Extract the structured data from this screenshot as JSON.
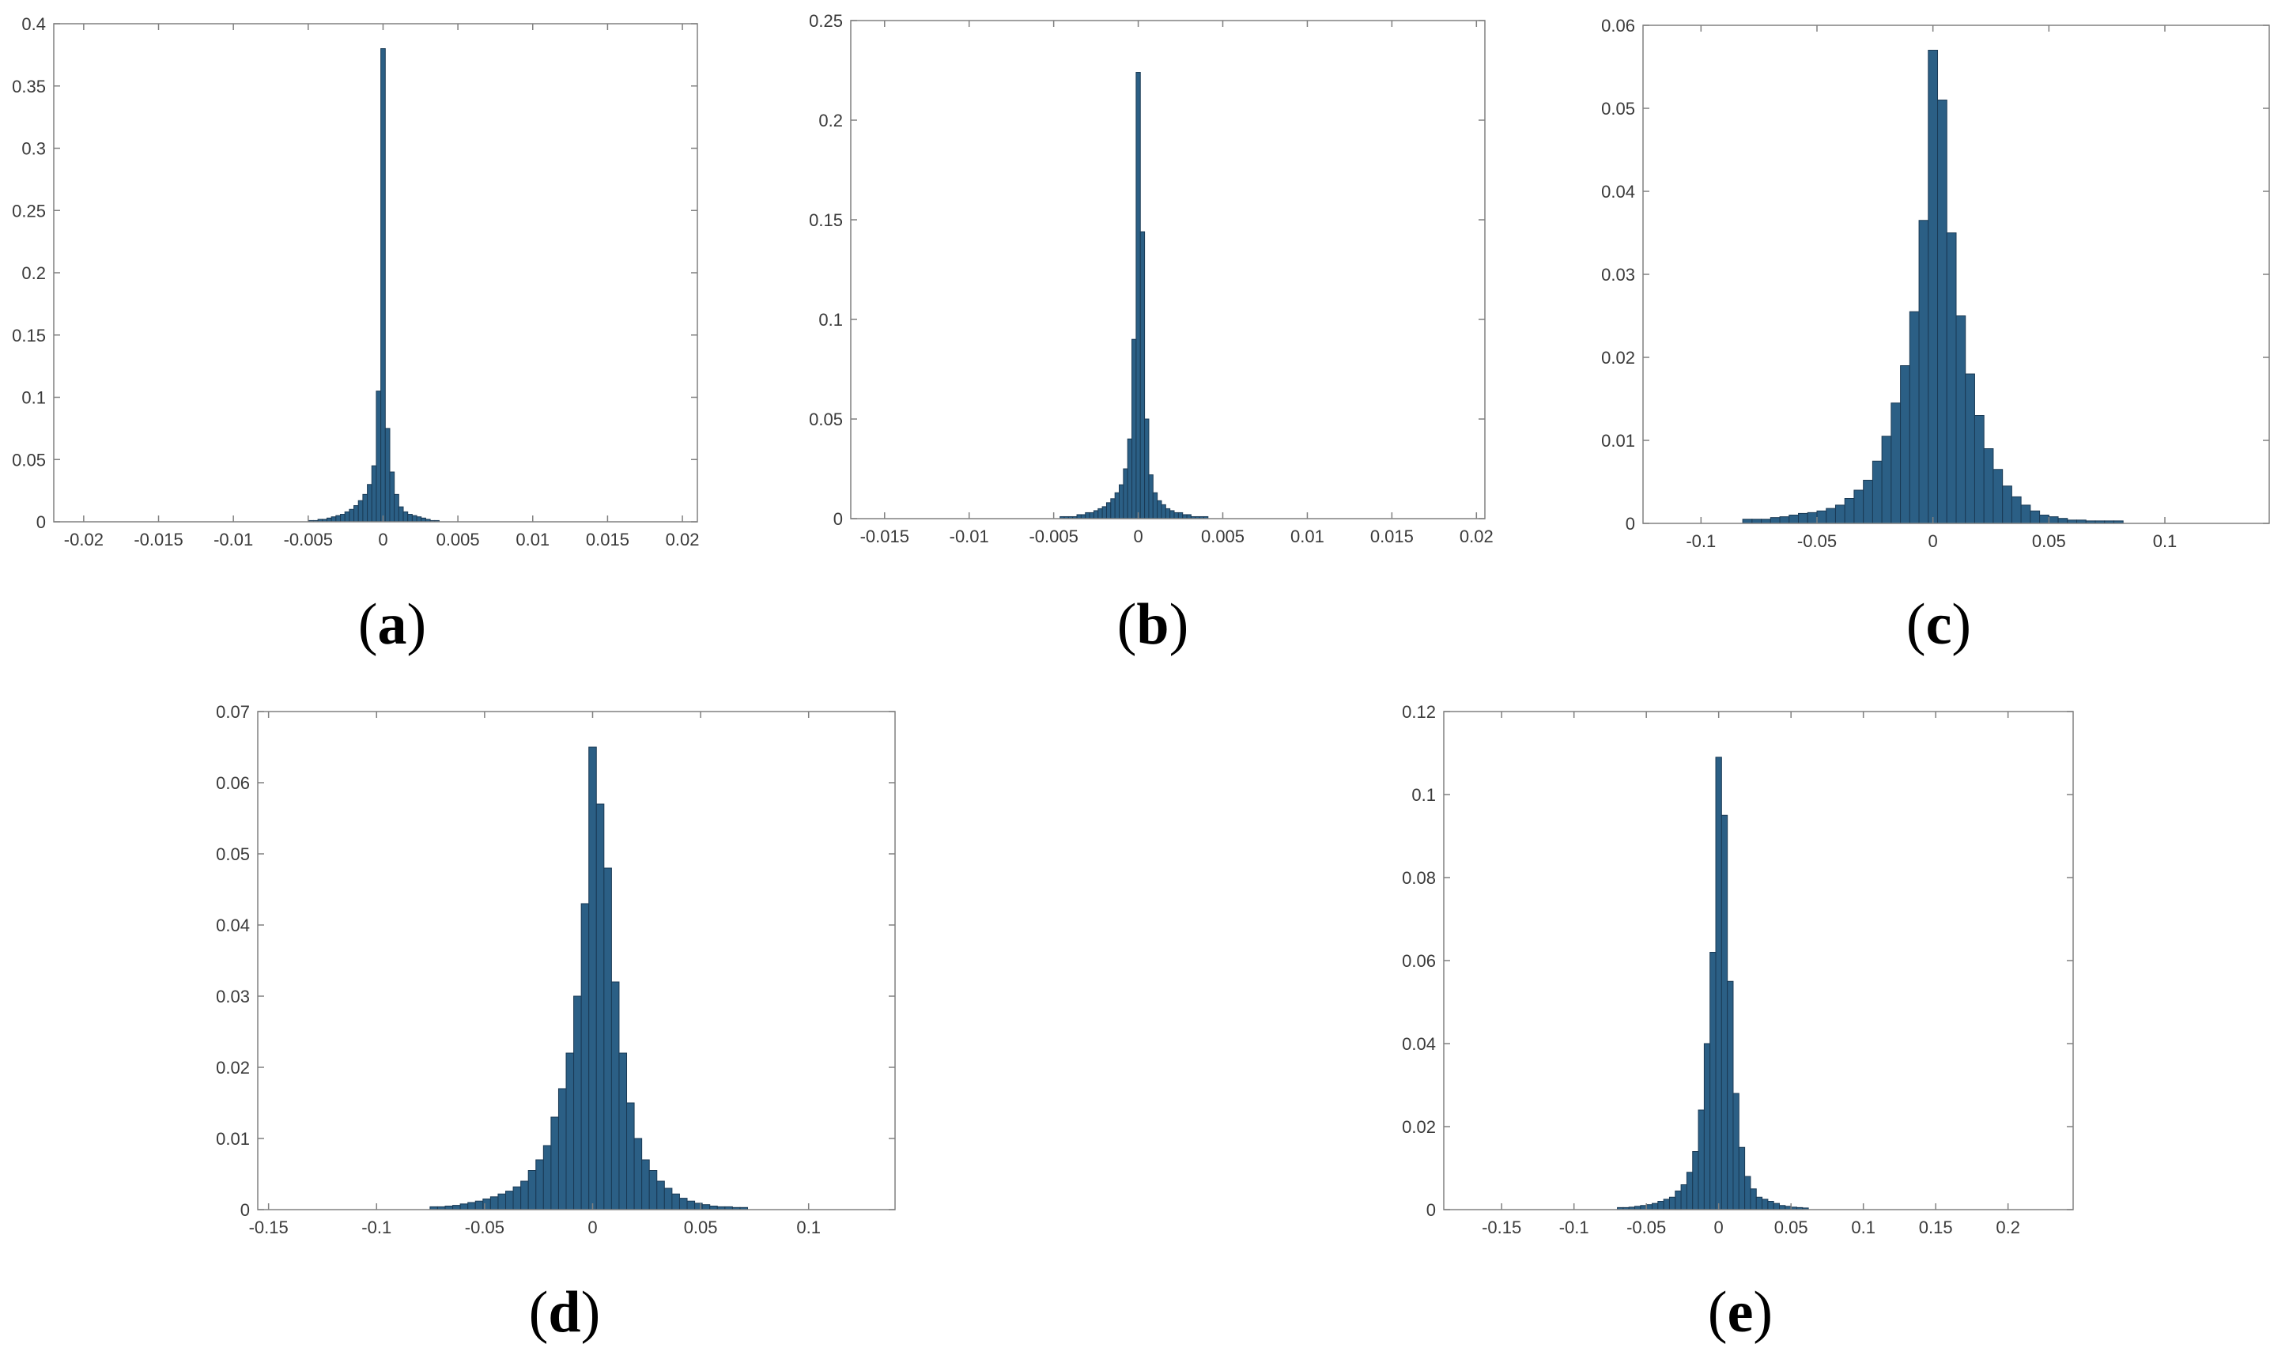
{
  "figure": {
    "panel_labels": [
      "a",
      "b",
      "c",
      "d",
      "e"
    ]
  },
  "colors": {
    "bar_fill": "#2b5f85",
    "bar_edge": "#1a3a55",
    "axis": "#808080",
    "tick_text": "#3a3a3a"
  },
  "chart_data": [
    {
      "id": "a",
      "type": "bar",
      "title": "",
      "xlabel": "",
      "ylabel": "",
      "xlim": [
        -0.022,
        0.021
      ],
      "ylim": [
        0,
        0.4
      ],
      "xticks": [
        -0.02,
        -0.015,
        -0.01,
        -0.005,
        0,
        0.005,
        0.01,
        0.015,
        0.02
      ],
      "xtick_labels": [
        "-0.02",
        "-0.015",
        "-0.01",
        "-0.005",
        "0",
        "0.005",
        "0.01",
        "0.015",
        "0.02"
      ],
      "yticks": [
        0,
        0.05,
        0.1,
        0.15,
        0.2,
        0.25,
        0.3,
        0.35,
        0.4
      ],
      "ytick_labels": [
        "0",
        "0.05",
        "0.1",
        "0.15",
        "0.2",
        "0.25",
        "0.3",
        "0.35",
        "0.4"
      ],
      "bin_width": 0.0003,
      "x": [
        -0.0048,
        -0.0045,
        -0.0042,
        -0.0039,
        -0.0036,
        -0.0033,
        -0.003,
        -0.0027,
        -0.0024,
        -0.0021,
        -0.0018,
        -0.0015,
        -0.0012,
        -0.0009,
        -0.0006,
        -0.0003,
        0.0,
        0.0003,
        0.0006,
        0.0009,
        0.0012,
        0.0015,
        0.0018,
        0.0021,
        0.0024,
        0.0027,
        0.003,
        0.0033,
        0.0036
      ],
      "values": [
        0.001,
        0.001,
        0.002,
        0.002,
        0.003,
        0.004,
        0.005,
        0.006,
        0.008,
        0.01,
        0.013,
        0.017,
        0.022,
        0.03,
        0.045,
        0.105,
        0.38,
        0.075,
        0.04,
        0.022,
        0.012,
        0.008,
        0.006,
        0.005,
        0.004,
        0.003,
        0.002,
        0.001,
        0.001
      ]
    },
    {
      "id": "b",
      "type": "bar",
      "title": "",
      "xlabel": "",
      "ylabel": "",
      "xlim": [
        -0.017,
        0.0205
      ],
      "ylim": [
        0,
        0.25
      ],
      "xticks": [
        -0.015,
        -0.01,
        -0.005,
        0,
        0.005,
        0.01,
        0.015,
        0.02
      ],
      "xtick_labels": [
        "-0.015",
        "-0.01",
        "-0.005",
        "0",
        "0.005",
        "0.01",
        "0.015",
        "0.02"
      ],
      "yticks": [
        0,
        0.05,
        0.1,
        0.15,
        0.2,
        0.25
      ],
      "ytick_labels": [
        "0",
        "0.05",
        "0.1",
        "0.15",
        "0.2",
        "0.25"
      ],
      "bin_width": 0.00025,
      "x": [
        -0.0045,
        -0.00425,
        -0.004,
        -0.00375,
        -0.0035,
        -0.00325,
        -0.003,
        -0.00275,
        -0.0025,
        -0.00225,
        -0.002,
        -0.00175,
        -0.0015,
        -0.00125,
        -0.001,
        -0.00075,
        -0.0005,
        -0.00025,
        0.0,
        0.00025,
        0.0005,
        0.00075,
        0.001,
        0.00125,
        0.0015,
        0.00175,
        0.002,
        0.00225,
        0.0025,
        0.00275,
        0.003,
        0.00325,
        0.0035,
        0.00375,
        0.004
      ],
      "values": [
        0.001,
        0.001,
        0.001,
        0.001,
        0.002,
        0.002,
        0.003,
        0.003,
        0.004,
        0.005,
        0.006,
        0.008,
        0.01,
        0.013,
        0.017,
        0.025,
        0.04,
        0.09,
        0.224,
        0.144,
        0.05,
        0.022,
        0.013,
        0.009,
        0.007,
        0.005,
        0.004,
        0.003,
        0.003,
        0.002,
        0.002,
        0.001,
        0.001,
        0.001,
        0.001
      ]
    },
    {
      "id": "c",
      "type": "bar",
      "title": "",
      "xlabel": "",
      "ylabel": "",
      "xlim": [
        -0.125,
        0.145
      ],
      "ylim": [
        0,
        0.06
      ],
      "xticks": [
        -0.1,
        -0.05,
        0,
        0.05,
        0.1
      ],
      "xtick_labels": [
        "-0.1",
        "-0.05",
        "0",
        "0.05",
        "0.1"
      ],
      "yticks": [
        0,
        0.01,
        0.02,
        0.03,
        0.04,
        0.05,
        0.06
      ],
      "ytick_labels": [
        "0",
        "0.01",
        "0.02",
        "0.03",
        "0.04",
        "0.05",
        "0.06"
      ],
      "bin_width": 0.004,
      "x": [
        -0.08,
        -0.076,
        -0.072,
        -0.068,
        -0.064,
        -0.06,
        -0.056,
        -0.052,
        -0.048,
        -0.044,
        -0.04,
        -0.036,
        -0.032,
        -0.028,
        -0.024,
        -0.02,
        -0.016,
        -0.012,
        -0.008,
        -0.004,
        0.0,
        0.004,
        0.008,
        0.012,
        0.016,
        0.02,
        0.024,
        0.028,
        0.032,
        0.036,
        0.04,
        0.044,
        0.048,
        0.052,
        0.056,
        0.06,
        0.064,
        0.068,
        0.072,
        0.076,
        0.08
      ],
      "values": [
        0.0005,
        0.0005,
        0.0005,
        0.0007,
        0.0008,
        0.001,
        0.0012,
        0.0013,
        0.0015,
        0.0018,
        0.0022,
        0.003,
        0.004,
        0.0052,
        0.0075,
        0.0105,
        0.0145,
        0.019,
        0.0255,
        0.0365,
        0.057,
        0.051,
        0.035,
        0.025,
        0.018,
        0.013,
        0.009,
        0.0065,
        0.0045,
        0.0032,
        0.0022,
        0.0015,
        0.001,
        0.0008,
        0.0006,
        0.0004,
        0.0004,
        0.0003,
        0.0003,
        0.0003,
        0.0003
      ]
    },
    {
      "id": "d",
      "type": "bar",
      "title": "",
      "xlabel": "",
      "ylabel": "",
      "xlim": [
        -0.155,
        0.14
      ],
      "ylim": [
        0,
        0.07
      ],
      "xticks": [
        -0.15,
        -0.1,
        -0.05,
        0,
        0.05,
        0.1
      ],
      "xtick_labels": [
        "-0.15",
        "-0.1",
        "-0.05",
        "0",
        "0.05",
        "0.1"
      ],
      "yticks": [
        0,
        0.01,
        0.02,
        0.03,
        0.04,
        0.05,
        0.06,
        0.07
      ],
      "ytick_labels": [
        "0",
        "0.01",
        "0.02",
        "0.03",
        "0.04",
        "0.05",
        "0.06",
        "0.07"
      ],
      "bin_width": 0.0035,
      "x": [
        -0.0735,
        -0.07,
        -0.0665,
        -0.063,
        -0.0595,
        -0.056,
        -0.0525,
        -0.049,
        -0.0455,
        -0.042,
        -0.0385,
        -0.035,
        -0.0315,
        -0.028,
        -0.0245,
        -0.021,
        -0.0175,
        -0.014,
        -0.0105,
        -0.007,
        -0.0035,
        0.0,
        0.0035,
        0.007,
        0.0105,
        0.014,
        0.0175,
        0.021,
        0.0245,
        0.028,
        0.0315,
        0.035,
        0.0385,
        0.042,
        0.0455,
        0.049,
        0.0525,
        0.056,
        0.0595,
        0.063,
        0.0665,
        0.07
      ],
      "values": [
        0.0004,
        0.0004,
        0.0005,
        0.0006,
        0.0008,
        0.001,
        0.0012,
        0.0015,
        0.0018,
        0.0022,
        0.0026,
        0.0032,
        0.004,
        0.0055,
        0.007,
        0.009,
        0.013,
        0.017,
        0.022,
        0.03,
        0.043,
        0.065,
        0.057,
        0.048,
        0.032,
        0.022,
        0.015,
        0.01,
        0.007,
        0.0055,
        0.004,
        0.003,
        0.0022,
        0.0016,
        0.0012,
        0.0009,
        0.0007,
        0.0005,
        0.0004,
        0.0004,
        0.0003,
        0.0003
      ]
    },
    {
      "id": "e",
      "type": "bar",
      "title": "",
      "xlabel": "",
      "ylabel": "",
      "xlim": [
        -0.19,
        0.245
      ],
      "ylim": [
        0,
        0.12
      ],
      "xticks": [
        -0.15,
        -0.1,
        -0.05,
        0,
        0.05,
        0.1,
        0.15,
        0.2
      ],
      "xtick_labels": [
        "-0.15",
        "-0.1",
        "-0.05",
        "0",
        "0.05",
        "0.1",
        "0.15",
        "0.2"
      ],
      "yticks": [
        0,
        0.02,
        0.04,
        0.06,
        0.08,
        0.1,
        0.12
      ],
      "ytick_labels": [
        "0",
        "0.02",
        "0.04",
        "0.06",
        "0.08",
        "0.1",
        "0.12"
      ],
      "bin_width": 0.004,
      "x": [
        -0.068,
        -0.064,
        -0.06,
        -0.056,
        -0.052,
        -0.048,
        -0.044,
        -0.04,
        -0.036,
        -0.032,
        -0.028,
        -0.024,
        -0.02,
        -0.016,
        -0.012,
        -0.008,
        -0.004,
        0.0,
        0.004,
        0.008,
        0.012,
        0.016,
        0.02,
        0.024,
        0.028,
        0.032,
        0.036,
        0.04,
        0.044,
        0.048,
        0.052,
        0.056,
        0.06
      ],
      "values": [
        0.0005,
        0.0005,
        0.0006,
        0.0008,
        0.001,
        0.0012,
        0.0015,
        0.002,
        0.0025,
        0.003,
        0.0045,
        0.006,
        0.009,
        0.014,
        0.024,
        0.04,
        0.062,
        0.109,
        0.095,
        0.055,
        0.028,
        0.015,
        0.008,
        0.005,
        0.003,
        0.0025,
        0.002,
        0.0015,
        0.001,
        0.0008,
        0.0006,
        0.0005,
        0.0004
      ]
    }
  ]
}
